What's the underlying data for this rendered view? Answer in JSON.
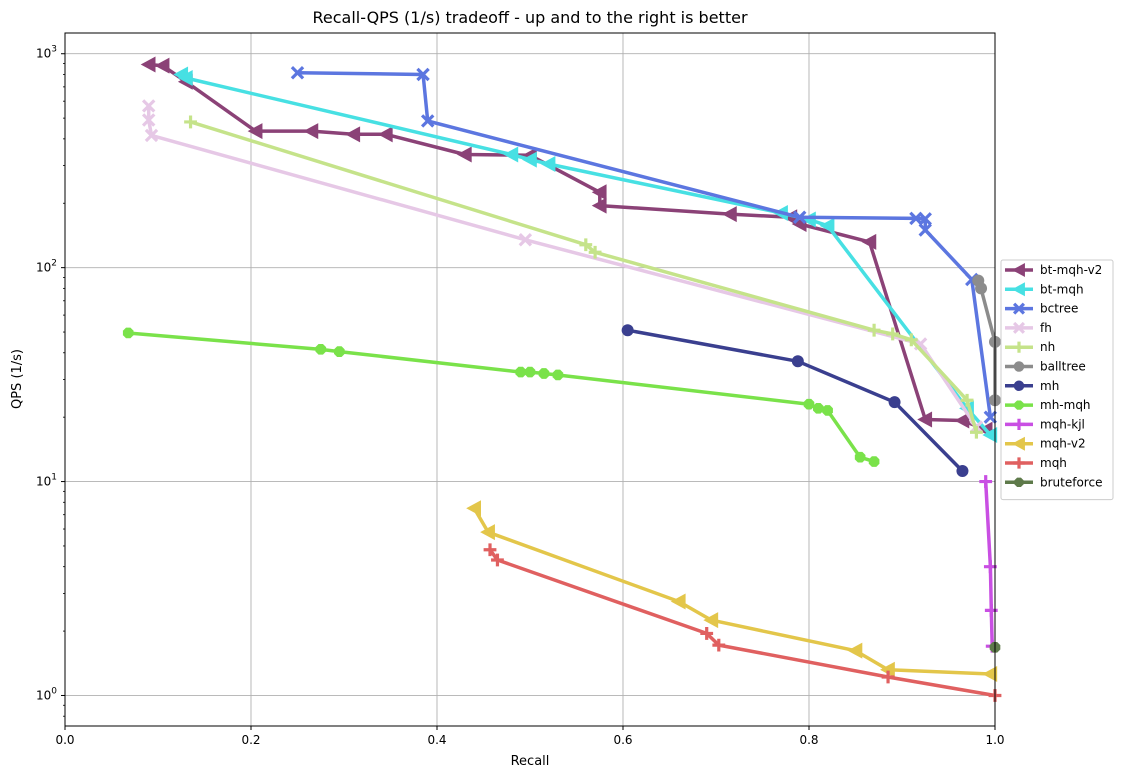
{
  "chart_data": {
    "type": "line",
    "title": "Recall-QPS (1/s) tradeoff - up and to the right is better",
    "xlabel": "Recall",
    "ylabel": "QPS (1/s)",
    "xlim": [
      0,
      1
    ],
    "ylim": [
      0.72,
      1250
    ],
    "yscale": "log",
    "grid": true,
    "legend_position": "right, outside plot",
    "x_ticks": [
      0.0,
      0.2,
      0.4,
      0.6,
      0.8,
      1.0
    ],
    "x_tick_labels": [
      "0.0",
      "0.2",
      "0.4",
      "0.6",
      "0.8",
      "1.0"
    ],
    "y_ticks": [
      1,
      10,
      100,
      1000
    ],
    "y_tick_labels": [
      {
        "base": "10",
        "exp": "0"
      },
      {
        "base": "10",
        "exp": "1"
      },
      {
        "base": "10",
        "exp": "2"
      },
      {
        "base": "10",
        "exp": "3"
      }
    ],
    "series": [
      {
        "name": "bt-mqh-v2",
        "color": "#8b4277",
        "marker": "triangle-left",
        "points": [
          [
            0.09,
            890
          ],
          [
            0.105,
            880
          ],
          [
            0.13,
            740
          ],
          [
            0.205,
            435
          ],
          [
            0.265,
            435
          ],
          [
            0.31,
            420
          ],
          [
            0.345,
            420
          ],
          [
            0.43,
            338
          ],
          [
            0.5,
            335
          ],
          [
            0.575,
            225
          ],
          [
            0.575,
            195
          ],
          [
            0.715,
            178
          ],
          [
            0.78,
            172
          ],
          [
            0.79,
            160
          ],
          [
            0.865,
            132
          ],
          [
            0.925,
            19.5
          ],
          [
            0.965,
            19.3
          ],
          [
            0.99,
            17.5
          ]
        ]
      },
      {
        "name": "bt-mqh",
        "color": "#47e0e3",
        "marker": "triangle-left",
        "points": [
          [
            0.125,
            800
          ],
          [
            0.13,
            770
          ],
          [
            0.48,
            338
          ],
          [
            0.5,
            320
          ],
          [
            0.52,
            305
          ],
          [
            0.77,
            180
          ],
          [
            0.8,
            168
          ],
          [
            0.82,
            157
          ],
          [
            0.97,
            22
          ],
          [
            0.995,
            16.5
          ]
        ]
      },
      {
        "name": "bctree",
        "color": "#5c76e0",
        "marker": "x",
        "points": [
          [
            0.25,
            815
          ],
          [
            0.385,
            800
          ],
          [
            0.39,
            485
          ],
          [
            0.79,
            172
          ],
          [
            0.915,
            170
          ],
          [
            0.925,
            169
          ],
          [
            0.925,
            150
          ],
          [
            0.975,
            88
          ],
          [
            0.995,
            20
          ]
        ]
      },
      {
        "name": "fh",
        "color": "#e6c8e6",
        "marker": "x",
        "points": [
          [
            0.09,
            570
          ],
          [
            0.09,
            490
          ],
          [
            0.093,
            415
          ],
          [
            0.495,
            135
          ],
          [
            0.92,
            44
          ],
          [
            0.98,
            18
          ]
        ]
      },
      {
        "name": "nh",
        "color": "#c5e38a",
        "marker": "plus",
        "points": [
          [
            0.135,
            480
          ],
          [
            0.56,
            128
          ],
          [
            0.57,
            118
          ],
          [
            0.87,
            51
          ],
          [
            0.89,
            49
          ],
          [
            0.91,
            46
          ],
          [
            0.97,
            24
          ],
          [
            0.98,
            17
          ]
        ]
      },
      {
        "name": "balltree",
        "color": "#8c8c8c",
        "marker": "circle",
        "points": [
          [
            0.982,
            87
          ],
          [
            0.985,
            80
          ],
          [
            1.0,
            45
          ],
          [
            1.0,
            24
          ]
        ]
      },
      {
        "name": "mh",
        "color": "#3a3f8f",
        "marker": "circle",
        "points": [
          [
            0.605,
            51
          ],
          [
            0.788,
            36.5
          ],
          [
            0.892,
            23.5
          ],
          [
            0.965,
            11.2
          ]
        ]
      },
      {
        "name": "mh-mqh",
        "color": "#7ae24a",
        "marker": "octagon",
        "points": [
          [
            0.068,
            49.5
          ],
          [
            0.275,
            41.5
          ],
          [
            0.295,
            40.5
          ],
          [
            0.49,
            32.5
          ],
          [
            0.5,
            32.5
          ],
          [
            0.515,
            32
          ],
          [
            0.53,
            31.5
          ],
          [
            0.8,
            23
          ],
          [
            0.81,
            22
          ],
          [
            0.82,
            21.5
          ],
          [
            0.855,
            13
          ],
          [
            0.87,
            12.4
          ]
        ]
      },
      {
        "name": "mqh-kjl",
        "color": "#c94fe3",
        "marker": "plus",
        "points": [
          [
            0.99,
            10
          ],
          [
            0.995,
            4
          ],
          [
            0.996,
            2.5
          ],
          [
            0.997,
            1.7
          ]
        ]
      },
      {
        "name": "mqh-v2",
        "color": "#e3c64a",
        "marker": "triangle-left",
        "points": [
          [
            0.44,
            7.5
          ],
          [
            0.455,
            5.8
          ],
          [
            0.66,
            2.75
          ],
          [
            0.695,
            2.25
          ],
          [
            0.85,
            1.62
          ],
          [
            0.885,
            1.32
          ],
          [
            0.995,
            1.26
          ]
        ]
      },
      {
        "name": "mqh",
        "color": "#e06060",
        "marker": "plus",
        "points": [
          [
            0.457,
            4.8
          ],
          [
            0.465,
            4.3
          ],
          [
            0.69,
            1.95
          ],
          [
            0.703,
            1.72
          ],
          [
            0.885,
            1.22
          ],
          [
            1.0,
            1.0
          ]
        ]
      },
      {
        "name": "bruteforce",
        "color": "#5e7a4a",
        "marker": "octagon",
        "points": [
          [
            1.0,
            1.68
          ]
        ]
      }
    ]
  }
}
